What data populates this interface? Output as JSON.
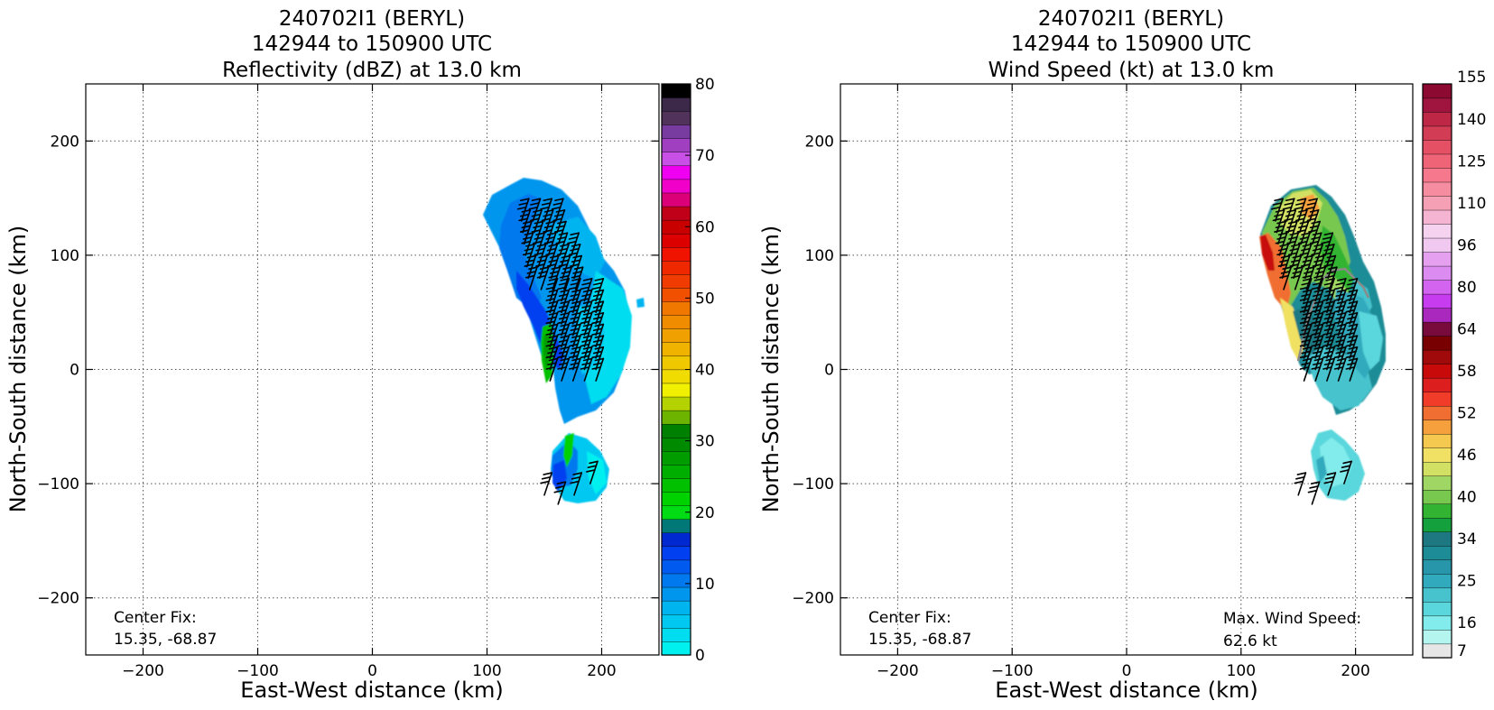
{
  "chart_data": [
    {
      "type": "heatmap",
      "title_lines": [
        "240702I1 (BERYL)",
        "142944 to 150900 UTC",
        "Reflectivity (dBZ) at 13.0 km"
      ],
      "xlabel": "East-West distance (km)",
      "ylabel": "North-South distance (km)",
      "xlim": [
        -250,
        250
      ],
      "ylim": [
        -250,
        250
      ],
      "xticks": [
        -200,
        -100,
        0,
        100,
        200
      ],
      "yticks": [
        -200,
        -100,
        0,
        100,
        200
      ],
      "grid": true,
      "note_lines": [
        "Center Fix:",
        "15.35, -68.87"
      ],
      "colorbar": {
        "min": 0,
        "max": 80,
        "step": 2.5,
        "ticks": [
          0,
          10,
          20,
          30,
          40,
          50,
          60,
          70,
          80
        ],
        "colors": [
          "#00f0f0",
          "#00dcf0",
          "#00c8f0",
          "#00b4f0",
          "#0096ee",
          "#0078ee",
          "#005af0",
          "#0040f0",
          "#0028d0",
          "#007878",
          "#00dc14",
          "#00d200",
          "#00c000",
          "#00ae00",
          "#009c00",
          "#008a00",
          "#008000",
          "#6cb400",
          "#b4d200",
          "#f0f000",
          "#f0dc00",
          "#f0c800",
          "#f0b400",
          "#f0a000",
          "#f08c00",
          "#f07800",
          "#f05000",
          "#f03c00",
          "#f02800",
          "#f01400",
          "#dc0000",
          "#c80000",
          "#c00018",
          "#dc0078",
          "#f000c8",
          "#f000f0",
          "#c850e6",
          "#a040c0",
          "#783ca0",
          "#50325a",
          "#3c2848",
          "#000000"
        ]
      },
      "field_description": "blue-cyan echo band (about 0-14 dBZ) with a green segment (about 20-25 dBZ) on the western edge",
      "barbs": "wind barbs on a ~10 km grid over the echo region"
    },
    {
      "type": "heatmap",
      "title_lines": [
        "240702I1 (BERYL)",
        "142944 to 150900 UTC",
        "Wind Speed (kt) at 13.0 km"
      ],
      "xlabel": "East-West distance (km)",
      "ylabel": "North-South distance (km)",
      "xlim": [
        -250,
        250
      ],
      "ylim": [
        -250,
        250
      ],
      "xticks": [
        -200,
        -100,
        0,
        100,
        200
      ],
      "yticks": [
        -200,
        -100,
        0,
        100,
        200
      ],
      "grid": true,
      "note_lines": [
        "Center Fix:",
        "15.35, -68.87"
      ],
      "max_wind": {
        "label": "Max. Wind Speed:",
        "value": "62.6 kt"
      },
      "colorbar": {
        "ticks": [
          "7",
          "16",
          "25",
          "34",
          "40",
          "46",
          "52",
          "58",
          "64",
          "80",
          "96",
          "110",
          "125",
          "140",
          "155"
        ],
        "colors": [
          "#e6e6e6",
          "#b4f5f0",
          "#82ebeb",
          "#5ad7dc",
          "#46c3cd",
          "#32aabe",
          "#2896aa",
          "#1e8c96",
          "#1e7882",
          "#14a03c",
          "#32b432",
          "#78c850",
          "#a0d764",
          "#d2e164",
          "#f0e164",
          "#f5c850",
          "#f5a03c",
          "#f06e32",
          "#f03c28",
          "#dc1e1e",
          "#c80a0a",
          "#a00a0a",
          "#780000",
          "#780a3c",
          "#aa28be",
          "#c83cf0",
          "#d264f0",
          "#dc8cf0",
          "#e6a0f0",
          "#f0c8f0",
          "#f5d2f0",
          "#f5b4d2",
          "#f5a0b4",
          "#f58ca0",
          "#f5788c",
          "#f06478",
          "#e65064",
          "#d23c55",
          "#be2846",
          "#a01440",
          "#8c0a32"
        ]
      },
      "field_description": "winds mostly 16-40 kt, strongest (about 52-62 kt) on the western edge near 120,110 km",
      "barbs": "wind barbs on a ~10 km grid over the echo region"
    }
  ]
}
